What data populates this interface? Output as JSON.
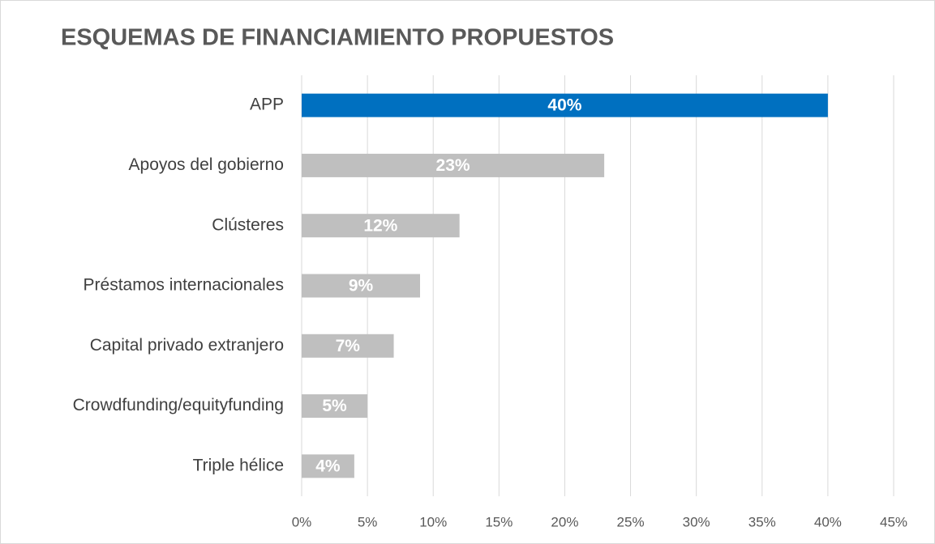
{
  "chart_data": {
    "type": "barh",
    "title": "ESQUEMAS DE FINANCIAMIENTO PROPUESTOS",
    "categories": [
      "APP",
      "Apoyos del gobierno",
      "Clústeres",
      "Préstamos internacionales",
      "Capital privado extranjero",
      "Crowdfunding/equityfunding",
      "Triple hélice"
    ],
    "values": [
      40,
      23,
      12,
      9,
      7,
      5,
      4
    ],
    "value_labels": [
      "40%",
      "23%",
      "12%",
      "9%",
      "7%",
      "5%",
      "4%"
    ],
    "colors": [
      "#0070c0",
      "#bfbfbf",
      "#bfbfbf",
      "#bfbfbf",
      "#bfbfbf",
      "#bfbfbf",
      "#bfbfbf"
    ],
    "xlim": [
      0,
      45
    ],
    "xticks": [
      {
        "value": 0,
        "label": "0%"
      },
      {
        "value": 5,
        "label": "5%"
      },
      {
        "value": 10,
        "label": "10%"
      },
      {
        "value": 15,
        "label": "15%"
      },
      {
        "value": 20,
        "label": "20%"
      },
      {
        "value": 25,
        "label": "25%"
      },
      {
        "value": 30,
        "label": "30%"
      },
      {
        "value": 35,
        "label": "35%"
      },
      {
        "value": 40,
        "label": "40%"
      },
      {
        "value": 45,
        "label": "45%"
      }
    ],
    "grid": true
  }
}
